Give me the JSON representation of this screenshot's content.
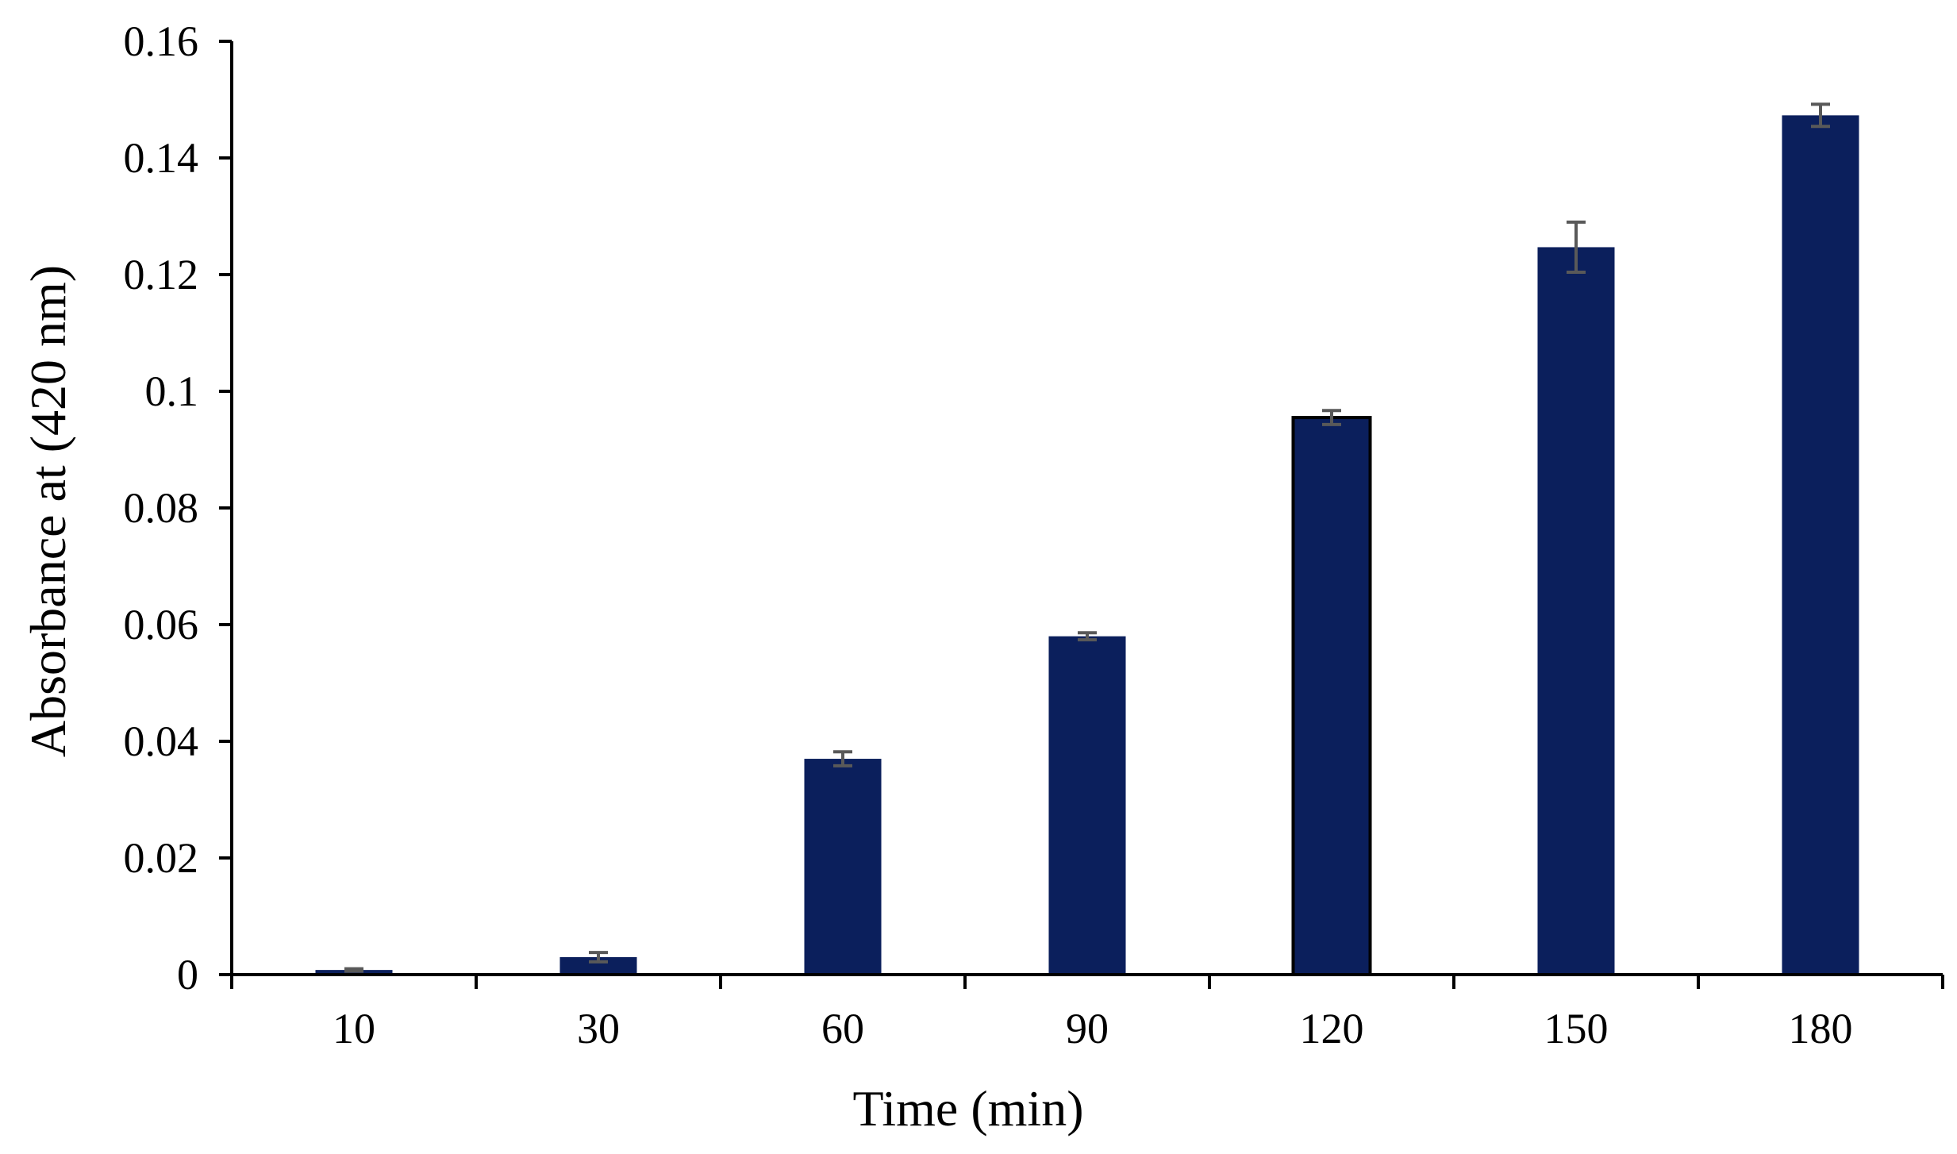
{
  "chart_data": {
    "type": "bar",
    "title": "",
    "xlabel": "Time (min)",
    "ylabel": "Absorbance at (420 nm)",
    "categories": [
      "10",
      "30",
      "60",
      "90",
      "120",
      "150",
      "180"
    ],
    "series": [
      {
        "values": [
          0.0008,
          0.003,
          0.037,
          0.058,
          0.0955,
          0.1247,
          0.1473
        ],
        "errors": [
          0.0002,
          0.0008,
          0.0012,
          0.0006,
          0.0012,
          0.0043,
          0.0019
        ]
      }
    ],
    "ylim": [
      0,
      0.16
    ],
    "yticks": [
      "0",
      "0.02",
      "0.04",
      "0.06",
      "0.08",
      "0.1",
      "0.12",
      "0.14",
      "0.16"
    ],
    "grid": false,
    "legend": "none",
    "colors": {
      "bar": "#0b1f5c",
      "error_bar": "#595959",
      "axis": "#000000"
    }
  }
}
